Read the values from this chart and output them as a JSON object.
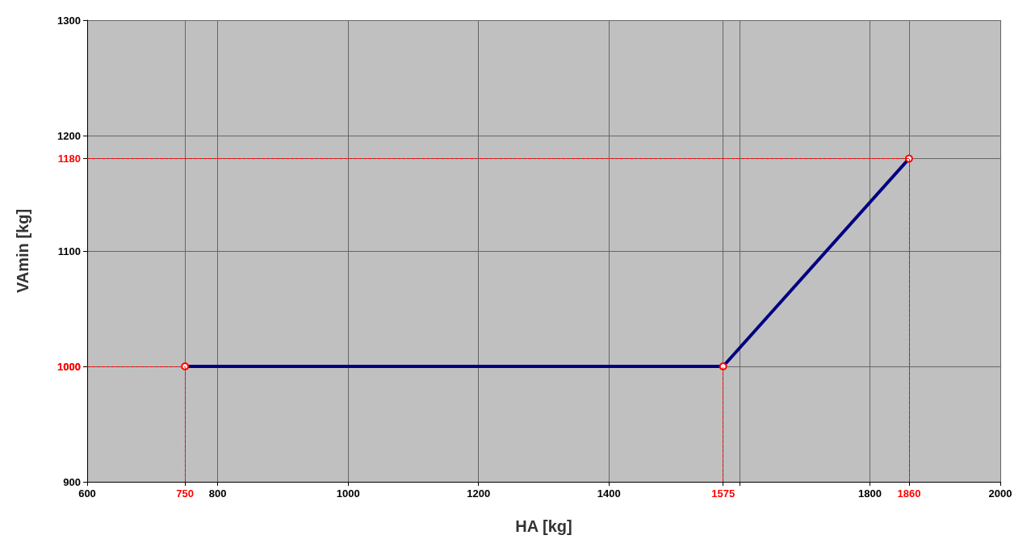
{
  "chart_data": {
    "type": "line",
    "xlabel": "HA [kg]",
    "ylabel": "VAmin [kg]",
    "x": [
      750,
      1575,
      1860
    ],
    "series": [
      {
        "color": "#000080",
        "values": [
          1000,
          1000,
          1180
        ]
      }
    ],
    "xlim": [
      600,
      2000
    ],
    "xticks": [
      600,
      800,
      1000,
      1200,
      1400,
      {
        "value": 1600,
        "label": null
      },
      1800,
      2000
    ],
    "ylim": [
      900,
      1300
    ],
    "yticks": [
      900,
      {
        "value": 1000,
        "label": null
      },
      1100,
      1200,
      1300
    ],
    "grid": true,
    "marker": "circle",
    "line_style": "solid",
    "ref_lines": [
      {
        "axis": "x",
        "value": 750,
        "label": "750",
        "color": "#ff0000",
        "line_style": "dashed"
      },
      {
        "axis": "x",
        "value": 1575,
        "label": "1575",
        "color": "#ff0000",
        "line_style": "dashed"
      },
      {
        "axis": "x",
        "value": 1860,
        "label": "1860",
        "color": "#ff0000",
        "line_style": "dashed"
      },
      {
        "axis": "y",
        "value": 1000,
        "label": "1000",
        "color": "#ff0000",
        "line_style": "dashed"
      },
      {
        "axis": "y",
        "value": 1180,
        "label": "1180",
        "color": "#ff0000",
        "line_style": "dashed"
      }
    ]
  }
}
